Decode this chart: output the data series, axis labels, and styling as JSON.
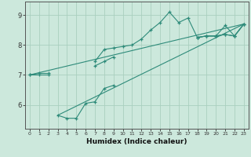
{
  "xlabel": "Humidex (Indice chaleur)",
  "line_color": "#2e8b7a",
  "bg_color": "#cce8dc",
  "grid_color": "#aacfbf",
  "xlim": [
    -0.5,
    23.5
  ],
  "ylim": [
    5.2,
    9.45
  ],
  "yticks": [
    6,
    7,
    8,
    9
  ],
  "xticks": [
    0,
    1,
    2,
    3,
    4,
    5,
    6,
    7,
    8,
    9,
    10,
    11,
    12,
    13,
    14,
    15,
    16,
    17,
    18,
    19,
    20,
    21,
    22,
    23
  ],
  "y_upper": [
    7.0,
    7.0,
    7.0,
    null,
    null,
    null,
    null,
    7.45,
    7.85,
    7.9,
    7.95,
    8.0,
    8.2,
    8.5,
    8.75,
    9.1,
    8.75,
    8.9,
    8.25,
    8.3,
    8.3,
    8.65,
    8.3,
    8.7
  ],
  "y_middle": [
    7.0,
    7.05,
    7.05,
    null,
    null,
    null,
    null,
    7.3,
    7.45,
    7.6,
    null,
    null,
    null,
    null,
    null,
    null,
    null,
    null,
    8.25,
    8.3,
    8.3,
    8.35,
    8.3,
    8.7
  ],
  "y_lower": [
    null,
    null,
    null,
    5.65,
    5.55,
    5.55,
    6.05,
    6.1,
    6.55,
    6.65,
    null,
    null,
    null,
    null,
    null,
    null,
    null,
    null,
    8.25,
    8.3,
    8.3,
    8.35,
    8.3,
    8.7
  ]
}
